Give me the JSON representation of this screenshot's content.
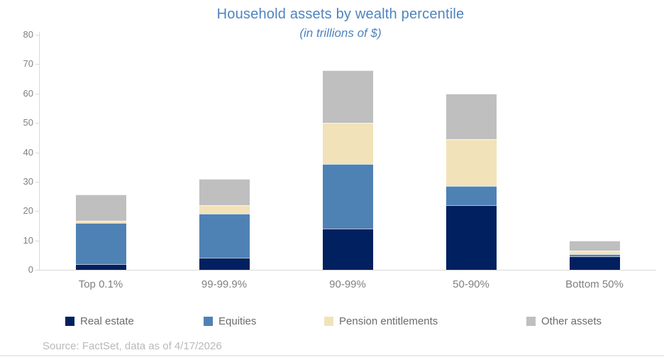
{
  "title": "Household assets by wealth percentile",
  "subtitle": "(in trillions of $)",
  "source_note": "Source: FactSet, data as of 4/17/2026",
  "colors": {
    "title_text": "#4e84c0",
    "axis_label_text": "#7f7f7f",
    "legend_text": "#6b6b6b",
    "source_text": "#b9b9b9",
    "axis_line": "#d9d9d9"
  },
  "chart_data": {
    "type": "bar",
    "stacked": true,
    "title": "Household assets by wealth percentile",
    "subtitle": "(in trillions of $)",
    "xlabel": "",
    "ylabel": "",
    "ylim": [
      0,
      80
    ],
    "yticks": [
      0,
      10,
      20,
      30,
      40,
      50,
      60,
      70,
      80
    ],
    "grid": false,
    "legend_position": "bottom",
    "categories": [
      "Top 0.1%",
      "99-99.9%",
      "90-99%",
      "50-90%",
      "Bottom 50%"
    ],
    "series": [
      {
        "name": "Real estate",
        "color": "#002060",
        "values": [
          2,
          4,
          14,
          22,
          4.5
        ]
      },
      {
        "name": "Equities",
        "color": "#4e82b4",
        "values": [
          14,
          15,
          22,
          6.5,
          0.8
        ]
      },
      {
        "name": "Pension entitlements",
        "color": "#f2e2ba",
        "values": [
          0.6,
          3,
          14,
          16,
          1.2
        ]
      },
      {
        "name": "Other assets",
        "color": "#bfbfbf",
        "values": [
          9,
          9,
          18,
          15.5,
          3.5
        ]
      }
    ],
    "totals": [
      25.6,
      31,
      68,
      60,
      10
    ]
  }
}
